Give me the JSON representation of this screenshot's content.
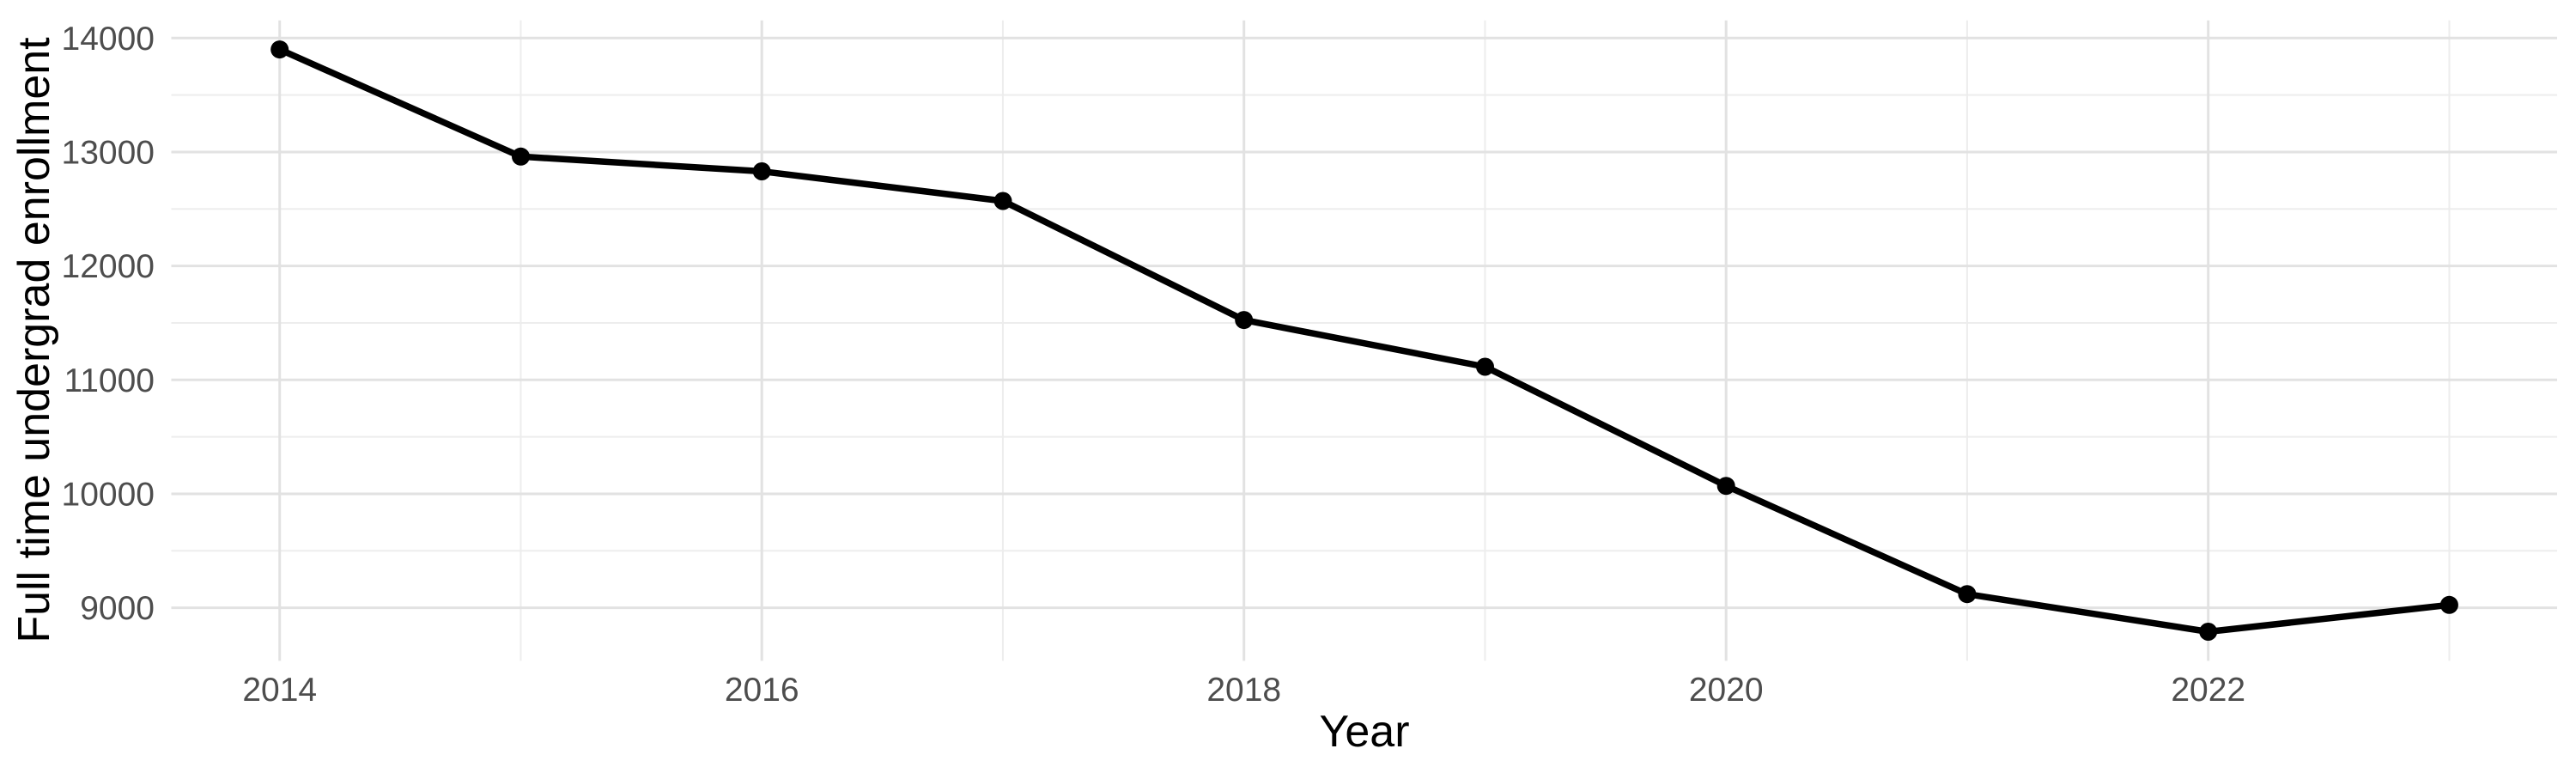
{
  "chart_data": {
    "type": "line",
    "title": "",
    "xlabel": "Year",
    "ylabel": "Full time undergrad enrollment",
    "series": [
      {
        "name": "Full time undergrad enrollment",
        "x": [
          2014,
          2015,
          2016,
          2017,
          2018,
          2019,
          2020,
          2021,
          2022,
          2023
        ],
        "values": [
          13900,
          12960,
          12830,
          12570,
          11525,
          11115,
          10070,
          9120,
          8790,
          9025
        ]
      }
    ],
    "x_tick_labels": [
      "2014",
      "2016",
      "2018",
      "2020",
      "2022"
    ],
    "x_major_gridlines": [
      2014,
      2016,
      2018,
      2020,
      2022
    ],
    "x_minor_gridlines": [
      2015,
      2017,
      2019,
      2021,
      2023
    ],
    "y_tick_labels": [
      "9000",
      "10000",
      "11000",
      "12000",
      "13000",
      "14000"
    ],
    "y_major_gridlines": [
      9000,
      10000,
      11000,
      12000,
      13000,
      14000
    ],
    "y_minor_gridlines": [
      9500,
      10500,
      11500,
      12500,
      13500
    ],
    "xlim": [
      2013.55,
      2023.45
    ],
    "ylim": [
      8535,
      14155
    ],
    "grid": "on",
    "legend": "none",
    "marker": "filled-circle",
    "colors": {
      "line": "#000000",
      "point": "#000000",
      "tick_label": "#4D4D4D",
      "axis_title": "#000000",
      "grid_major": "#E2E2E2",
      "grid_minor": "#EDEDED",
      "background": "#FFFFFF"
    }
  }
}
